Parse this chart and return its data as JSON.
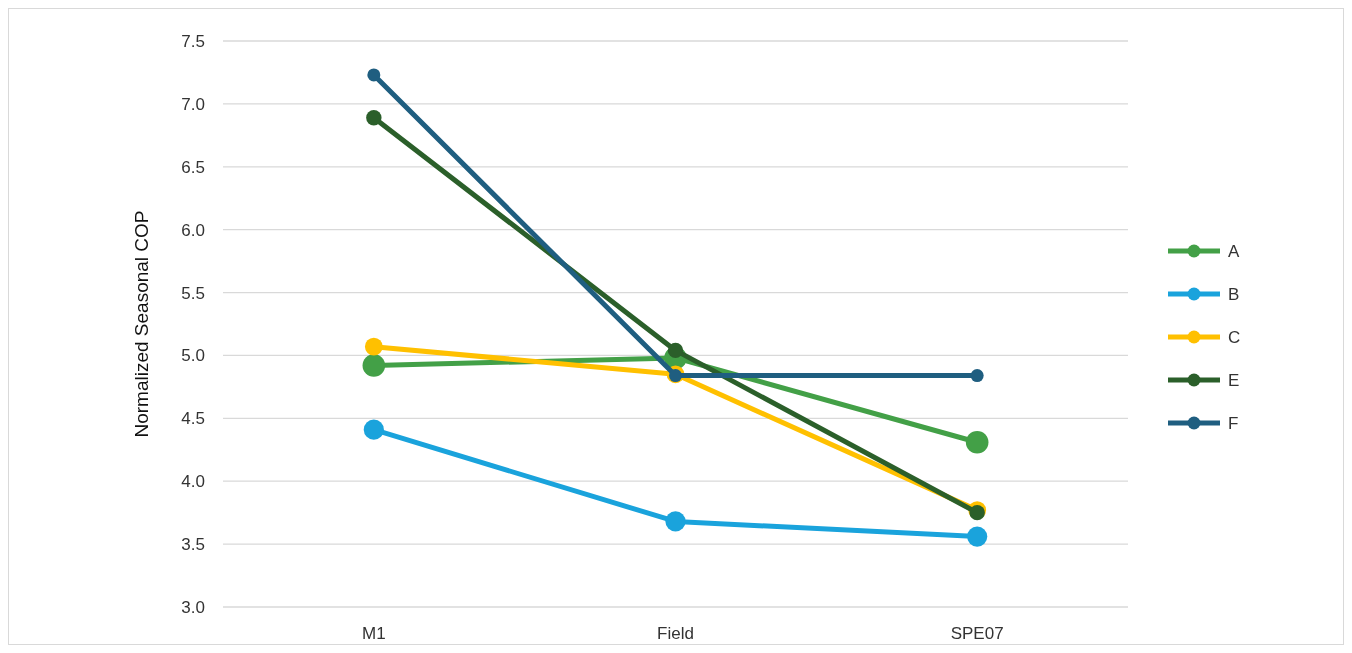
{
  "chart_data": {
    "type": "line",
    "ylabel": "Normalized  Seasonal COP",
    "categories": [
      "M1",
      "Field",
      "SPE07"
    ],
    "ylim": [
      3.0,
      7.5
    ],
    "yticks": [
      {
        "value": 3.0,
        "label": "3.0"
      },
      {
        "value": 3.5,
        "label": "3.5"
      },
      {
        "value": 4.0,
        "label": "4.0"
      },
      {
        "value": 4.5,
        "label": "4.5"
      },
      {
        "value": 5.0,
        "label": "5.0"
      },
      {
        "value": 5.5,
        "label": "5.5"
      },
      {
        "value": 6.0,
        "label": "6.0"
      },
      {
        "value": 6.5,
        "label": "6.5"
      },
      {
        "value": 7.0,
        "label": "7.0"
      },
      {
        "value": 7.5,
        "label": "7.5"
      }
    ],
    "grid": "y",
    "legend": "right",
    "marker": "circle",
    "series": [
      {
        "name": "A",
        "color": "#43a047",
        "values": [
          4.92,
          4.98,
          4.31
        ]
      },
      {
        "name": "B",
        "color": "#1aa3dc",
        "values": [
          4.41,
          3.68,
          3.56
        ]
      },
      {
        "name": "C",
        "color": "#ffc000",
        "values": [
          5.07,
          4.85,
          3.77
        ]
      },
      {
        "name": "E",
        "color": "#2b5f2a",
        "values": [
          6.89,
          5.04,
          3.75
        ]
      },
      {
        "name": "F",
        "color": "#1f5e80",
        "values": [
          7.23,
          4.84,
          4.84
        ]
      }
    ]
  }
}
